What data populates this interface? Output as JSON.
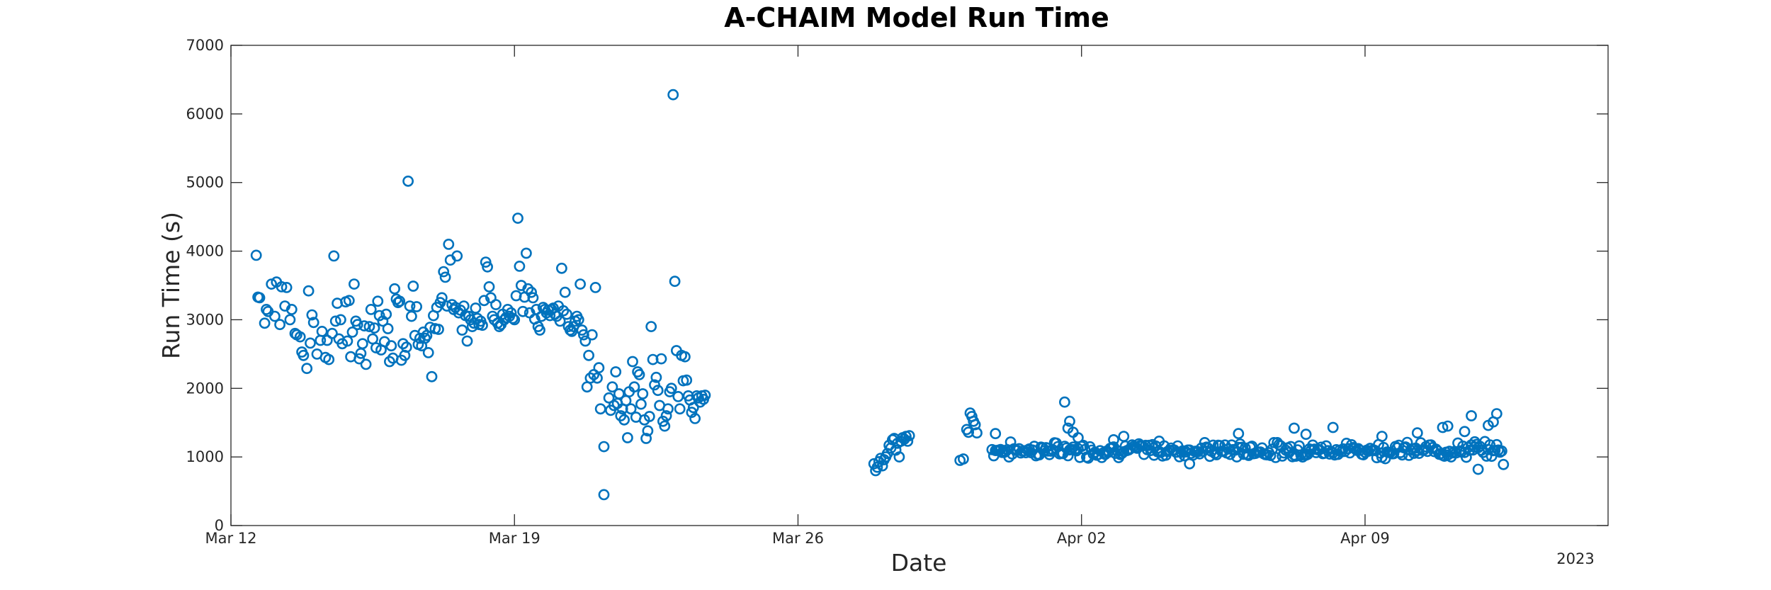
{
  "chart_data": {
    "type": "scatter",
    "title": "A-CHAIM Model Run Time",
    "xlabel": "Date",
    "ylabel": "Run Time (s)",
    "x_axis_year": "2023",
    "xlim": [
      "2023-03-12",
      "2023-04-15"
    ],
    "ylim": [
      0,
      7000
    ],
    "x_ticks": [
      {
        "date": "2023-03-12",
        "label": "Mar 12"
      },
      {
        "date": "2023-03-19",
        "label": "Mar 19"
      },
      {
        "date": "2023-03-26",
        "label": "Mar 26"
      },
      {
        "date": "2023-04-02",
        "label": "Apr 02"
      },
      {
        "date": "2023-04-09",
        "label": "Apr 09"
      }
    ],
    "y_ticks": [
      0,
      1000,
      2000,
      3000,
      4000,
      5000,
      6000,
      7000
    ],
    "grid": false,
    "colors": {
      "marker": "#0072BD",
      "axis": "#262626"
    },
    "x_unit": "hours since 2023-03-12 00:00",
    "points": [
      [
        15,
        3940
      ],
      [
        16,
        3330
      ],
      [
        17,
        3320
      ],
      [
        20,
        2950
      ],
      [
        21,
        3150
      ],
      [
        22,
        3120
      ],
      [
        24,
        3520
      ],
      [
        26,
        3050
      ],
      [
        27,
        3550
      ],
      [
        29,
        2930
      ],
      [
        30,
        3480
      ],
      [
        32,
        3200
      ],
      [
        33,
        3470
      ],
      [
        35,
        3000
      ],
      [
        36,
        3150
      ],
      [
        38,
        2800
      ],
      [
        39,
        2780
      ],
      [
        41,
        2750
      ],
      [
        42,
        2530
      ],
      [
        43,
        2480
      ],
      [
        45,
        2290
      ],
      [
        46,
        3420
      ],
      [
        47,
        2660
      ],
      [
        48,
        3070
      ],
      [
        49,
        2960
      ],
      [
        51,
        2500
      ],
      [
        53,
        2700
      ],
      [
        54,
        2830
      ],
      [
        56,
        2450
      ],
      [
        57,
        2700
      ],
      [
        58,
        2420
      ],
      [
        60,
        2800
      ],
      [
        61,
        3930
      ],
      [
        62,
        2980
      ],
      [
        63,
        3240
      ],
      [
        64,
        2720
      ],
      [
        65,
        3000
      ],
      [
        66,
        2650
      ],
      [
        68,
        3260
      ],
      [
        69,
        2690
      ],
      [
        70,
        3280
      ],
      [
        71,
        2460
      ],
      [
        72,
        2820
      ],
      [
        73,
        3520
      ],
      [
        74,
        2980
      ],
      [
        75,
        2930
      ],
      [
        76,
        2430
      ],
      [
        77,
        2510
      ],
      [
        78,
        2650
      ],
      [
        79,
        2910
      ],
      [
        80,
        2350
      ],
      [
        82,
        2900
      ],
      [
        83,
        3150
      ],
      [
        84,
        2720
      ],
      [
        85,
        2880
      ],
      [
        86,
        2590
      ],
      [
        87,
        3270
      ],
      [
        88,
        3060
      ],
      [
        89,
        2560
      ],
      [
        90,
        2980
      ],
      [
        91,
        2680
      ],
      [
        92,
        3080
      ],
      [
        93,
        2870
      ],
      [
        94,
        2390
      ],
      [
        95,
        2620
      ],
      [
        96,
        2440
      ],
      [
        97,
        3450
      ],
      [
        98,
        3300
      ],
      [
        99,
        3250
      ],
      [
        100,
        3270
      ],
      [
        101,
        2410
      ],
      [
        102,
        2650
      ],
      [
        103,
        2480
      ],
      [
        104,
        2600
      ],
      [
        105,
        5020
      ],
      [
        106,
        3200
      ],
      [
        107,
        3050
      ],
      [
        108,
        3490
      ],
      [
        109,
        2770
      ],
      [
        110,
        3190
      ],
      [
        111,
        2640
      ],
      [
        112,
        2730
      ],
      [
        113,
        2620
      ],
      [
        114,
        2820
      ],
      [
        115,
        2730
      ],
      [
        116,
        2770
      ],
      [
        117,
        2520
      ],
      [
        118,
        2890
      ],
      [
        119,
        2170
      ],
      [
        120,
        3060
      ],
      [
        121,
        2870
      ],
      [
        122,
        3180
      ],
      [
        123,
        2860
      ],
      [
        124,
        3250
      ],
      [
        125,
        3320
      ],
      [
        126,
        3700
      ],
      [
        127,
        3620
      ],
      [
        128,
        3200
      ],
      [
        129,
        4100
      ],
      [
        130,
        3870
      ],
      [
        131,
        3220
      ],
      [
        132,
        3150
      ],
      [
        133,
        3180
      ],
      [
        134,
        3930
      ],
      [
        135,
        3100
      ],
      [
        136,
        3140
      ],
      [
        137,
        2850
      ],
      [
        138,
        3200
      ],
      [
        139,
        3060
      ],
      [
        140,
        2690
      ],
      [
        141,
        3050
      ],
      [
        142,
        3000
      ],
      [
        143,
        2900
      ],
      [
        144,
        2950
      ],
      [
        145,
        3170
      ],
      [
        146,
        3020
      ],
      [
        147,
        2930
      ],
      [
        148,
        2980
      ],
      [
        149,
        2920
      ],
      [
        150,
        3280
      ],
      [
        151,
        3840
      ],
      [
        152,
        3770
      ],
      [
        153,
        3480
      ],
      [
        154,
        3320
      ],
      [
        155,
        3050
      ],
      [
        156,
        3000
      ],
      [
        157,
        3220
      ],
      [
        158,
        2950
      ],
      [
        159,
        2900
      ],
      [
        160,
        2930
      ],
      [
        161,
        3080
      ],
      [
        162,
        3000
      ],
      [
        163,
        3030
      ],
      [
        164,
        3150
      ],
      [
        165,
        3050
      ],
      [
        166,
        3100
      ],
      [
        167,
        3020
      ],
      [
        168,
        3000
      ],
      [
        169,
        3350
      ],
      [
        170,
        4480
      ],
      [
        171,
        3780
      ],
      [
        172,
        3500
      ],
      [
        173,
        3120
      ],
      [
        174,
        3330
      ],
      [
        175,
        3970
      ],
      [
        176,
        3450
      ],
      [
        177,
        3100
      ],
      [
        178,
        3400
      ],
      [
        179,
        3320
      ],
      [
        180,
        3010
      ],
      [
        181,
        3150
      ],
      [
        182,
        2900
      ],
      [
        183,
        2850
      ],
      [
        184,
        3050
      ],
      [
        185,
        3180
      ],
      [
        186,
        3150
      ],
      [
        187,
        3100
      ],
      [
        188,
        3140
      ],
      [
        189,
        3060
      ],
      [
        190,
        3150
      ],
      [
        191,
        3170
      ],
      [
        192,
        3080
      ],
      [
        193,
        3050
      ],
      [
        194,
        3200
      ],
      [
        195,
        2980
      ],
      [
        196,
        3750
      ],
      [
        197,
        3130
      ],
      [
        198,
        3400
      ],
      [
        199,
        3080
      ],
      [
        200,
        2900
      ],
      [
        201,
        2850
      ],
      [
        202,
        2830
      ],
      [
        203,
        2900
      ],
      [
        204,
        2980
      ],
      [
        205,
        3050
      ],
      [
        206,
        3000
      ],
      [
        207,
        3520
      ],
      [
        208,
        2850
      ],
      [
        209,
        2780
      ],
      [
        210,
        2690
      ],
      [
        211,
        2020
      ],
      [
        212,
        2480
      ],
      [
        213,
        2150
      ],
      [
        214,
        2780
      ],
      [
        215,
        2200
      ],
      [
        216,
        3470
      ],
      [
        217,
        2150
      ],
      [
        218,
        2300
      ],
      [
        219,
        1700
      ],
      [
        221,
        1150
      ],
      [
        221,
        450
      ],
      [
        224,
        1860
      ],
      [
        225,
        1680
      ],
      [
        226,
        2020
      ],
      [
        227,
        1750
      ],
      [
        228,
        2240
      ],
      [
        229,
        1780
      ],
      [
        230,
        1920
      ],
      [
        231,
        1600
      ],
      [
        232,
        1700
      ],
      [
        233,
        1540
      ],
      [
        234,
        1820
      ],
      [
        235,
        1280
      ],
      [
        236,
        1950
      ],
      [
        237,
        1700
      ],
      [
        238,
        2390
      ],
      [
        239,
        2020
      ],
      [
        240,
        1580
      ],
      [
        241,
        2240
      ],
      [
        242,
        2200
      ],
      [
        243,
        1770
      ],
      [
        244,
        1920
      ],
      [
        245,
        1540
      ],
      [
        246,
        1270
      ],
      [
        247,
        1380
      ],
      [
        248,
        1590
      ],
      [
        249,
        2900
      ],
      [
        250,
        2420
      ],
      [
        251,
        2050
      ],
      [
        252,
        2160
      ],
      [
        253,
        1970
      ],
      [
        254,
        1750
      ],
      [
        255,
        2430
      ],
      [
        256,
        1520
      ],
      [
        257,
        1450
      ],
      [
        258,
        1600
      ],
      [
        259,
        1700
      ],
      [
        260,
        1950
      ],
      [
        261,
        2000
      ],
      [
        262,
        6280
      ],
      [
        263,
        3560
      ],
      [
        264,
        2550
      ],
      [
        265,
        1880
      ],
      [
        266,
        1700
      ],
      [
        267,
        2480
      ],
      [
        268,
        2110
      ],
      [
        269,
        2460
      ],
      [
        270,
        2120
      ],
      [
        271,
        1890
      ],
      [
        272,
        1830
      ],
      [
        273,
        1650
      ],
      [
        274,
        1720
      ],
      [
        275,
        1560
      ],
      [
        276,
        1890
      ],
      [
        277,
        1860
      ],
      [
        278,
        1800
      ],
      [
        279,
        1890
      ],
      [
        280,
        1840
      ],
      [
        281,
        1900
      ],
      [
        381,
        900
      ],
      [
        382,
        800
      ],
      [
        383,
        850
      ],
      [
        384,
        930
      ],
      [
        385,
        980
      ],
      [
        386,
        870
      ],
      [
        387,
        960
      ],
      [
        388,
        1000
      ],
      [
        389,
        1050
      ],
      [
        390,
        1170
      ],
      [
        391,
        1130
      ],
      [
        392,
        1250
      ],
      [
        393,
        1270
      ],
      [
        394,
        1100
      ],
      [
        395,
        1200
      ],
      [
        396,
        1000
      ],
      [
        397,
        1230
      ],
      [
        398,
        1280
      ],
      [
        399,
        1260
      ],
      [
        400,
        1300
      ],
      [
        401,
        1230
      ],
      [
        402,
        1310
      ],
      [
        432,
        950
      ],
      [
        434,
        970
      ],
      [
        436,
        1400
      ],
      [
        437,
        1360
      ],
      [
        438,
        1640
      ],
      [
        439,
        1590
      ],
      [
        440,
        1520
      ],
      [
        441,
        1470
      ],
      [
        442,
        1350
      ]
    ],
    "band": {
      "x_start": 451,
      "x_end": 753,
      "step": 1,
      "y_center": 1100,
      "y_amplitude": 130,
      "outliers": [
        [
          453,
          1340
        ],
        [
          494,
          1800
        ],
        [
          496,
          1420
        ],
        [
          497,
          1520
        ],
        [
          499,
          1360
        ],
        [
          502,
          1280
        ],
        [
          523,
          1250
        ],
        [
          529,
          1300
        ],
        [
          550,
          1230
        ],
        [
          568,
          900
        ],
        [
          597,
          1340
        ],
        [
          630,
          1420
        ],
        [
          637,
          1330
        ],
        [
          653,
          1430
        ],
        [
          682,
          1300
        ],
        [
          703,
          1350
        ],
        [
          718,
          1430
        ],
        [
          721,
          1450
        ],
        [
          731,
          1370
        ],
        [
          735,
          1600
        ],
        [
          737,
          1220
        ],
        [
          739,
          820
        ],
        [
          745,
          1460
        ],
        [
          748,
          1510
        ],
        [
          750,
          1630
        ],
        [
          754,
          890
        ]
      ]
    }
  }
}
